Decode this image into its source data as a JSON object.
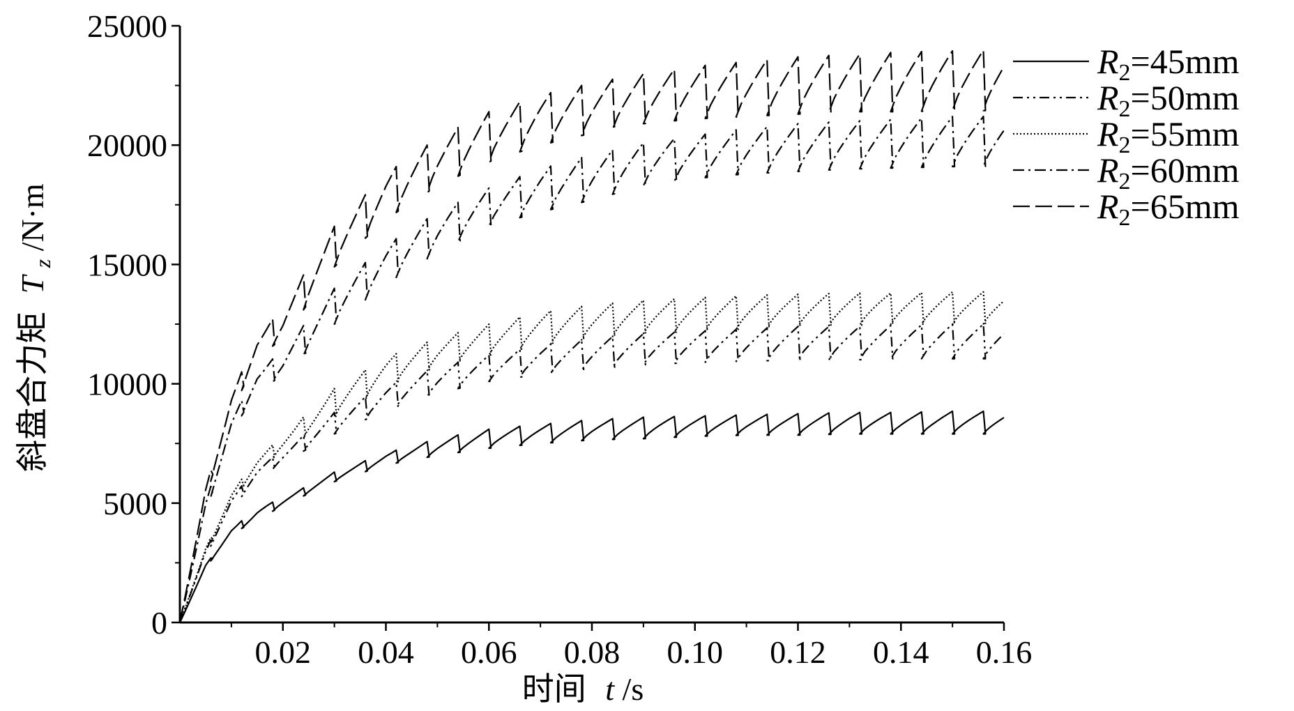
{
  "chart_data": {
    "type": "line",
    "ylabel_cn": "斜盘合力矩",
    "ylabel_sym": "T",
    "ylabel_sub": "z",
    "ylabel_unit": "/N·m",
    "xlabel_cn": "时间",
    "xlabel_sym": "t",
    "xlabel_unit": "/s",
    "xlim": [
      0,
      0.16
    ],
    "ylim": [
      0,
      25000
    ],
    "xticks": [
      "0.02",
      "0.04",
      "0.06",
      "0.08",
      "0.10",
      "0.12",
      "0.14",
      "0.16"
    ],
    "yticks": [
      "0",
      "5000",
      "10000",
      "15000",
      "20000",
      "25000"
    ],
    "period": 0.006,
    "series": [
      {
        "name": "R2=45mm",
        "R": "R",
        "sub": "2",
        "rest": "=45mm",
        "dash": "",
        "x": [
          0,
          0.005,
          0.01,
          0.015,
          0.02,
          0.03,
          0.04,
          0.05,
          0.06,
          0.07,
          0.08,
          0.09,
          0.1,
          0.11,
          0.12,
          0.13,
          0.14,
          0.15,
          0.16
        ],
        "peak": [
          0,
          2400,
          3900,
          4800,
          5200,
          6300,
          7100,
          7700,
          8100,
          8300,
          8500,
          8600,
          8650,
          8700,
          8750,
          8800,
          8800,
          8850,
          8850
        ],
        "trough": [
          0,
          2300,
          3700,
          4300,
          4900,
          5900,
          6600,
          7000,
          7300,
          7500,
          7650,
          7700,
          7800,
          7850,
          7850,
          7900,
          7900,
          7900,
          7900
        ]
      },
      {
        "name": "R2=50mm",
        "R": "R",
        "sub": "2",
        "rest": "=50mm",
        "dash": "14 6 3 6 3 6",
        "x": [
          0,
          0.005,
          0.01,
          0.015,
          0.02,
          0.03,
          0.04,
          0.05,
          0.06,
          0.07,
          0.08,
          0.09,
          0.1,
          0.11,
          0.12,
          0.13,
          0.14,
          0.15,
          0.16
        ],
        "peak": [
          0,
          3000,
          5200,
          6500,
          7200,
          8800,
          9900,
          10700,
          11200,
          11600,
          11900,
          12100,
          12200,
          12300,
          12400,
          12400,
          12450,
          12500,
          12500
        ],
        "trough": [
          0,
          2800,
          4800,
          6000,
          6700,
          7900,
          8900,
          9600,
          10100,
          10400,
          10600,
          10800,
          10900,
          10950,
          11000,
          11000,
          11050,
          11050,
          11050
        ]
      },
      {
        "name": "R2=55mm",
        "R": "R",
        "sub": "2",
        "rest": "=55mm",
        "dash": "2 3",
        "x": [
          0,
          0.005,
          0.01,
          0.015,
          0.02,
          0.03,
          0.04,
          0.05,
          0.06,
          0.07,
          0.08,
          0.09,
          0.1,
          0.11,
          0.12,
          0.13,
          0.14,
          0.15,
          0.16
        ],
        "peak": [
          0,
          3100,
          5400,
          6900,
          7800,
          9800,
          11100,
          11900,
          12500,
          13000,
          13300,
          13500,
          13600,
          13700,
          13750,
          13800,
          13800,
          13850,
          13850
        ],
        "trough": [
          0,
          2900,
          5100,
          6400,
          7200,
          8600,
          9900,
          10700,
          11200,
          11600,
          11900,
          12100,
          12200,
          12300,
          12400,
          12450,
          12500,
          12500,
          12500
        ]
      },
      {
        "name": "R2=60mm",
        "R": "R",
        "sub": "2",
        "rest": "=60mm",
        "dash": "16 6 3 6",
        "x": [
          0,
          0.005,
          0.01,
          0.015,
          0.02,
          0.03,
          0.04,
          0.05,
          0.06,
          0.07,
          0.08,
          0.09,
          0.1,
          0.11,
          0.12,
          0.13,
          0.14,
          0.15,
          0.16
        ],
        "peak": [
          0,
          5000,
          8500,
          10500,
          11400,
          14000,
          15800,
          17200,
          18200,
          19000,
          19600,
          20100,
          20400,
          20700,
          20900,
          21000,
          21100,
          21200,
          21200
        ],
        "trough": [
          0,
          4600,
          7900,
          9800,
          10300,
          12500,
          14200,
          15500,
          16600,
          17200,
          17700,
          18300,
          18600,
          18800,
          18900,
          19000,
          19050,
          19100,
          19100
        ]
      },
      {
        "name": "R2=65mm",
        "R": "R",
        "sub": "2",
        "rest": "=65mm",
        "dash": "24 8",
        "x": [
          0,
          0.005,
          0.01,
          0.015,
          0.02,
          0.03,
          0.04,
          0.05,
          0.06,
          0.07,
          0.08,
          0.09,
          0.1,
          0.11,
          0.12,
          0.13,
          0.14,
          0.15,
          0.16
        ],
        "peak": [
          0,
          5600,
          9500,
          12000,
          13200,
          16600,
          18800,
          20300,
          21400,
          22100,
          22600,
          23000,
          23300,
          23500,
          23700,
          23800,
          23900,
          23950,
          24000
        ],
        "trough": [
          0,
          5200,
          8800,
          11100,
          11900,
          14900,
          16900,
          18300,
          19300,
          20000,
          20500,
          20900,
          21100,
          21200,
          21300,
          21400,
          21400,
          21450,
          21450
        ]
      }
    ]
  }
}
